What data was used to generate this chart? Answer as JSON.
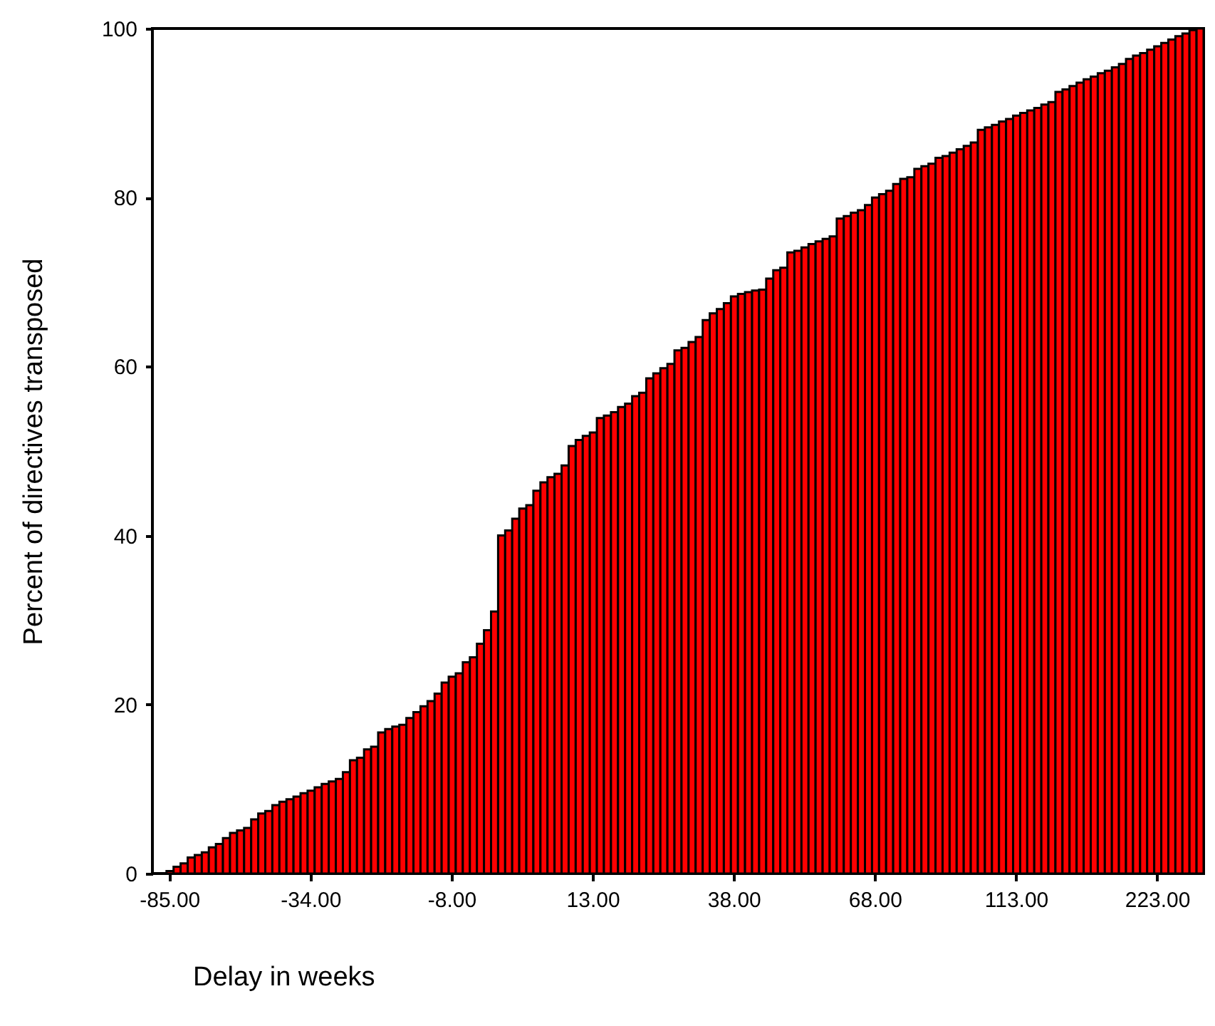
{
  "chart_data": {
    "type": "bar",
    "xlabel": "Delay in weeks",
    "ylabel": "Percent of directives transposed",
    "color": "#ff0000",
    "ylim": [
      0,
      100
    ],
    "yticks": [
      0,
      20,
      40,
      60,
      80,
      100
    ],
    "categories": [
      "-85.00",
      null,
      null,
      null,
      null,
      null,
      null,
      null,
      null,
      null,
      null,
      null,
      null,
      null,
      null,
      null,
      null,
      null,
      null,
      null,
      "-34.00",
      null,
      null,
      null,
      null,
      null,
      null,
      null,
      null,
      null,
      null,
      null,
      null,
      null,
      null,
      null,
      null,
      null,
      null,
      null,
      "-8.00",
      null,
      null,
      null,
      null,
      null,
      null,
      null,
      null,
      null,
      null,
      null,
      null,
      null,
      null,
      null,
      null,
      null,
      null,
      null,
      "13.00",
      null,
      null,
      null,
      null,
      null,
      null,
      null,
      null,
      null,
      null,
      null,
      null,
      null,
      null,
      null,
      null,
      null,
      null,
      null,
      "38.00",
      null,
      null,
      null,
      null,
      null,
      null,
      null,
      null,
      null,
      null,
      null,
      null,
      null,
      null,
      null,
      null,
      null,
      null,
      null,
      "68.00",
      null,
      null,
      null,
      null,
      null,
      null,
      null,
      null,
      null,
      null,
      null,
      null,
      null,
      null,
      null,
      null,
      null,
      null,
      null,
      "113.00",
      null,
      null,
      null,
      null,
      null,
      null,
      null,
      null,
      null,
      null,
      null,
      null,
      null,
      null,
      null,
      null,
      null,
      null,
      null,
      "223.00",
      null,
      null,
      null,
      null,
      null,
      null
    ],
    "values": [
      0.3,
      0.8,
      1.2,
      1.9,
      2.2,
      2.5,
      3.1,
      3.5,
      4.2,
      4.8,
      5.1,
      5.4,
      6.4,
      7.1,
      7.4,
      8.1,
      8.5,
      8.8,
      9.1,
      9.5,
      9.8,
      10.2,
      10.6,
      10.9,
      11.2,
      12.0,
      13.4,
      13.7,
      14.7,
      15.0,
      16.7,
      17.1,
      17.4,
      17.6,
      18.4,
      19.1,
      19.8,
      20.4,
      21.3,
      22.6,
      23.3,
      23.7,
      25.0,
      25.6,
      27.2,
      28.8,
      31.0,
      40.0,
      40.6,
      42.0,
      43.2,
      43.6,
      45.3,
      46.3,
      46.9,
      47.3,
      48.3,
      50.6,
      51.3,
      51.8,
      52.2,
      53.9,
      54.2,
      54.6,
      55.2,
      55.6,
      56.5,
      56.9,
      58.6,
      59.2,
      59.8,
      60.3,
      61.9,
      62.2,
      62.9,
      63.5,
      65.5,
      66.3,
      66.8,
      67.5,
      68.3,
      68.6,
      68.8,
      69.0,
      69.1,
      70.4,
      71.4,
      71.7,
      73.5,
      73.7,
      74.1,
      74.5,
      74.8,
      75.1,
      75.4,
      77.5,
      77.8,
      78.2,
      78.5,
      79.1,
      80.0,
      80.4,
      80.8,
      81.6,
      82.2,
      82.4,
      83.4,
      83.7,
      84.0,
      84.7,
      84.9,
      85.3,
      85.7,
      86.1,
      86.5,
      88.0,
      88.3,
      88.6,
      89.0,
      89.3,
      89.7,
      90.0,
      90.3,
      90.6,
      91.0,
      91.3,
      92.5,
      92.8,
      93.2,
      93.6,
      94.0,
      94.3,
      94.7,
      95.0,
      95.4,
      95.8,
      96.4,
      96.8,
      97.1,
      97.5,
      97.9,
      98.3,
      98.7,
      99.1,
      99.4,
      99.8,
      100
    ]
  }
}
